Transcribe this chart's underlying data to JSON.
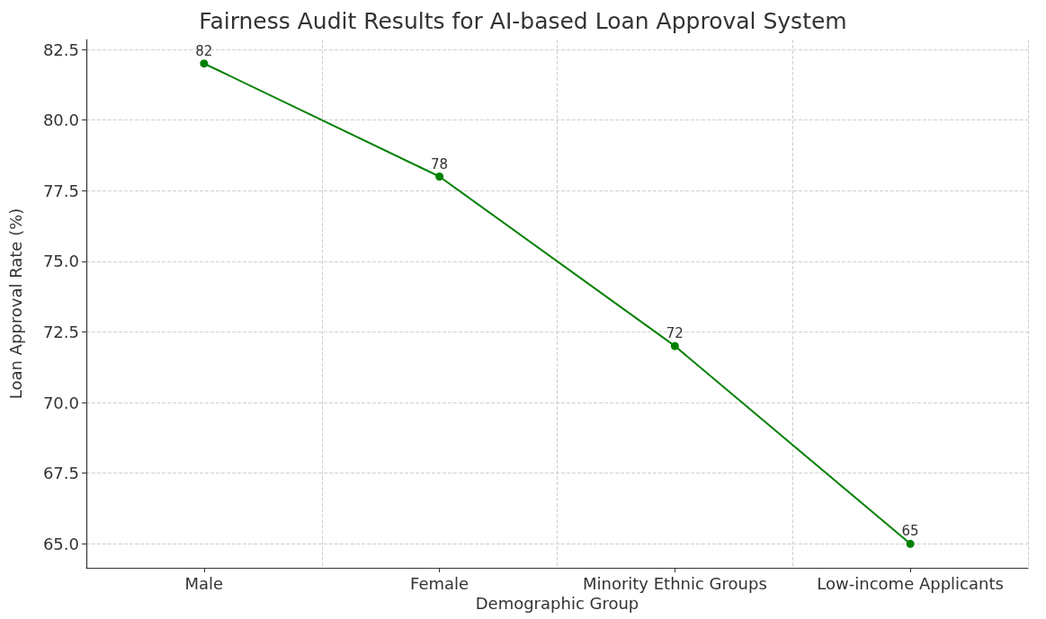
{
  "chart_data": {
    "type": "line",
    "title": "Fairness Audit Results for AI-based Loan Approval System",
    "xlabel": "Demographic Group",
    "ylabel": "Loan Approval Rate (%)",
    "categories": [
      "Male",
      "Female",
      "Minority Ethnic Groups",
      "Low-income Applicants"
    ],
    "series": [
      {
        "color": "#008000",
        "values": [
          82,
          78,
          72,
          65
        ]
      }
    ],
    "ylim": [
      64.15,
      82.85
    ],
    "yticks": [
      {
        "value": 65,
        "label": "65.0"
      },
      {
        "value": 67.5,
        "label": "67.5"
      },
      {
        "value": 70,
        "label": "70.0"
      },
      {
        "value": 72.5,
        "label": "72.5"
      },
      {
        "value": 75,
        "label": "75.0"
      },
      {
        "value": 77.5,
        "label": "77.5"
      },
      {
        "value": 80,
        "label": "80.0"
      },
      {
        "value": 82.5,
        "label": "82.5"
      }
    ],
    "grid": true,
    "marker": "circle",
    "line_style": "solid",
    "data_labels": true
  }
}
